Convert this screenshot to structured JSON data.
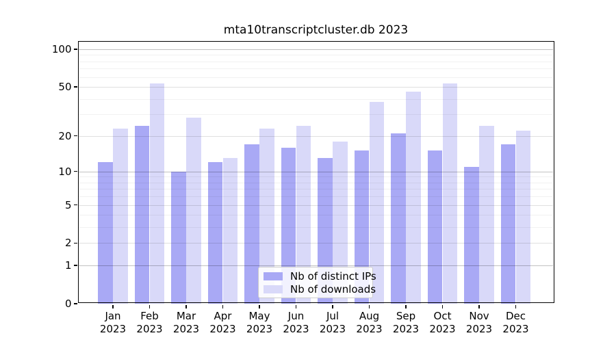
{
  "chart_data": {
    "type": "bar",
    "title": "mta10transcriptcluster.db 2023",
    "categories": [
      "Jan 2023",
      "Feb 2023",
      "Mar 2023",
      "Apr 2023",
      "May 2023",
      "Jun 2023",
      "Jul 2023",
      "Aug 2023",
      "Sep 2023",
      "Oct 2023",
      "Nov 2023",
      "Dec 2023"
    ],
    "series": [
      {
        "name": "Nb of distinct IPs",
        "color": "#a9a9f5",
        "values": [
          12,
          24,
          10,
          12,
          17,
          16,
          13,
          15,
          21,
          15,
          11,
          17
        ]
      },
      {
        "name": "Nb of downloads",
        "color": "#d9d9f9",
        "values": [
          23,
          53,
          28,
          13,
          23,
          24,
          18,
          38,
          46,
          53,
          24,
          22
        ]
      }
    ],
    "xlabel": "",
    "ylabel": "",
    "yscale": "log1p",
    "ylim": [
      0,
      116
    ],
    "yticks": [
      0,
      1,
      2,
      5,
      10,
      20,
      50,
      100
    ],
    "ygrid_major": [
      1,
      10,
      100
    ],
    "ygrid_mid": [
      2,
      5,
      20,
      50
    ],
    "ygrid_minor": [
      3,
      4,
      6,
      7,
      8,
      9,
      30,
      40,
      60,
      70,
      80,
      90
    ],
    "grid": true,
    "legend_position": "bottom-center"
  }
}
